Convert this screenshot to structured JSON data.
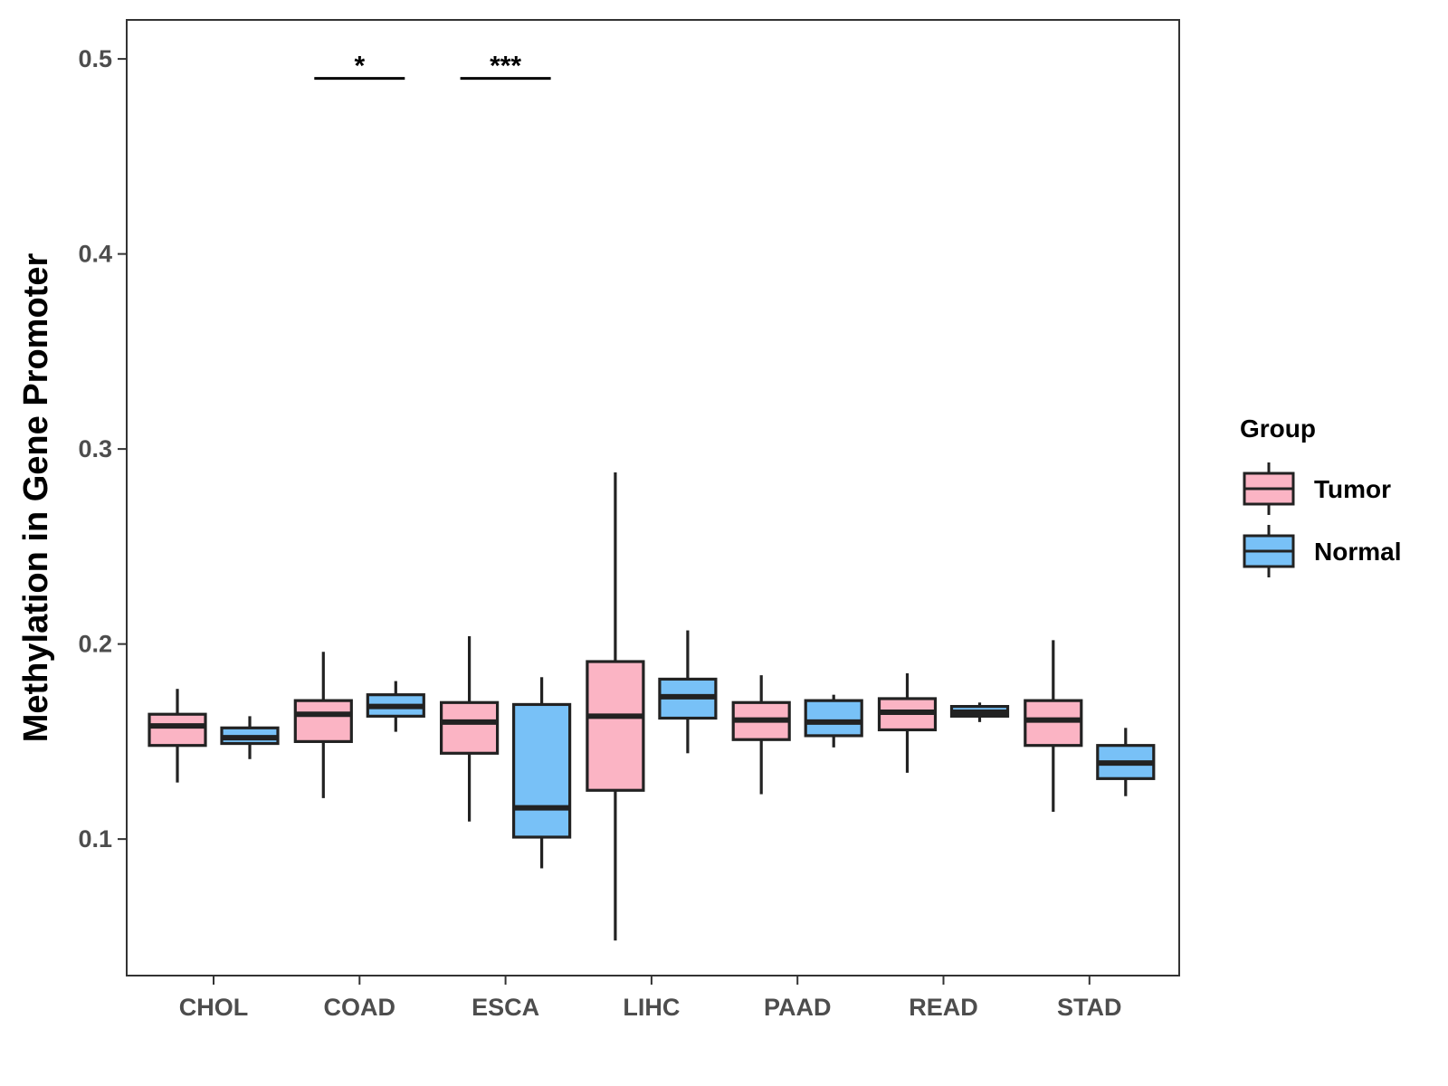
{
  "chart_data": {
    "type": "boxplot",
    "title": "",
    "xlabel": "",
    "ylabel": "Methylation in Gene Promoter",
    "ylim": [
      0.03,
      0.52
    ],
    "yticks": [
      0.1,
      0.2,
      0.3,
      0.4,
      0.5
    ],
    "ytick_labels": [
      "0.1",
      "0.2",
      "0.3",
      "0.4",
      "0.5"
    ],
    "categories": [
      "CHOL",
      "COAD",
      "ESCA",
      "LIHC",
      "PAAD",
      "READ",
      "STAD"
    ],
    "legend": {
      "title": "Group",
      "position": "right",
      "entries": [
        {
          "name": "Tumor",
          "color": "#fbb4c4"
        },
        {
          "name": "Normal",
          "color": "#78c1f7"
        }
      ]
    },
    "series": [
      {
        "name": "Tumor",
        "color": "#fbb4c4",
        "boxes": [
          {
            "category": "CHOL",
            "min": 0.129,
            "q1": 0.148,
            "median": 0.158,
            "q3": 0.164,
            "max": 0.177
          },
          {
            "category": "COAD",
            "min": 0.121,
            "q1": 0.15,
            "median": 0.164,
            "q3": 0.171,
            "max": 0.196
          },
          {
            "category": "ESCA",
            "min": 0.109,
            "q1": 0.144,
            "median": 0.16,
            "q3": 0.17,
            "max": 0.204
          },
          {
            "category": "LIHC",
            "min": 0.048,
            "q1": 0.125,
            "median": 0.163,
            "q3": 0.191,
            "max": 0.288
          },
          {
            "category": "PAAD",
            "min": 0.123,
            "q1": 0.151,
            "median": 0.161,
            "q3": 0.17,
            "max": 0.184
          },
          {
            "category": "READ",
            "min": 0.134,
            "q1": 0.156,
            "median": 0.165,
            "q3": 0.172,
            "max": 0.185
          },
          {
            "category": "STAD",
            "min": 0.114,
            "q1": 0.148,
            "median": 0.161,
            "q3": 0.171,
            "max": 0.202
          }
        ]
      },
      {
        "name": "Normal",
        "color": "#78c1f7",
        "boxes": [
          {
            "category": "CHOL",
            "min": 0.141,
            "q1": 0.149,
            "median": 0.152,
            "q3": 0.157,
            "max": 0.163
          },
          {
            "category": "COAD",
            "min": 0.155,
            "q1": 0.163,
            "median": 0.168,
            "q3": 0.174,
            "max": 0.181
          },
          {
            "category": "ESCA",
            "min": 0.085,
            "q1": 0.101,
            "median": 0.116,
            "q3": 0.169,
            "max": 0.183
          },
          {
            "category": "LIHC",
            "min": 0.144,
            "q1": 0.162,
            "median": 0.173,
            "q3": 0.182,
            "max": 0.207
          },
          {
            "category": "PAAD",
            "min": 0.147,
            "q1": 0.153,
            "median": 0.16,
            "q3": 0.171,
            "max": 0.174
          },
          {
            "category": "READ",
            "min": 0.16,
            "q1": 0.163,
            "median": 0.165,
            "q3": 0.168,
            "max": 0.17
          },
          {
            "category": "STAD",
            "min": 0.122,
            "q1": 0.131,
            "median": 0.139,
            "q3": 0.148,
            "max": 0.157
          }
        ]
      }
    ],
    "annotations": [
      {
        "category": "COAD",
        "label": "*",
        "y": 0.49
      },
      {
        "category": "ESCA",
        "label": "***",
        "y": 0.49
      }
    ]
  }
}
